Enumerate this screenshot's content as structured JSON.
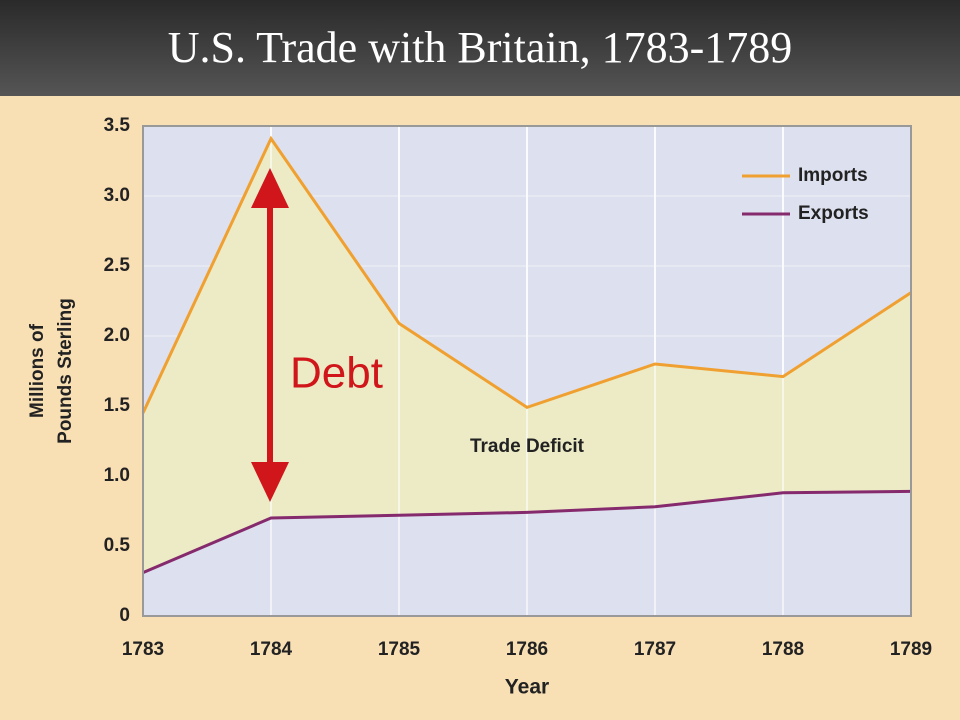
{
  "chart_data": {
    "type": "line",
    "title": "U.S. Trade with Britain, 1783-1789",
    "x_label": "Year",
    "y_label": [
      "Millions of",
      "Pounds Sterling"
    ],
    "categories": [
      "1783",
      "1784",
      "1785",
      "1786",
      "1787",
      "1788",
      "1789"
    ],
    "series": [
      {
        "name": "Imports",
        "color": "#f0a030",
        "values": [
          1.45,
          3.41,
          2.09,
          1.49,
          1.8,
          1.71,
          2.31
        ]
      },
      {
        "name": "Exports",
        "color": "#862a6e",
        "values": [
          0.31,
          0.7,
          0.72,
          0.74,
          0.78,
          0.88,
          0.89
        ]
      }
    ],
    "ylim": [
      0,
      3.5
    ],
    "yticks": [
      0,
      0.5,
      {
        "value": 1,
        "label": "1.0"
      },
      1.5,
      {
        "value": 2,
        "label": "2.0"
      },
      2.5,
      {
        "value": 3,
        "label": "3.0"
      },
      3.5
    ],
    "grid": true,
    "legend": "top-right",
    "annotations": [
      "Trade Deficit",
      "Debt"
    ]
  }
}
